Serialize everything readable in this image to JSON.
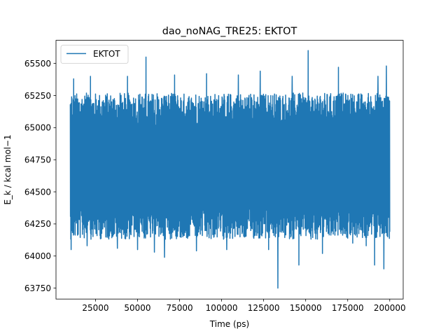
{
  "chart_data": {
    "type": "line",
    "title": "dao_noNAG_TRE25: EKTOT",
    "xlabel": "Time (ps)",
    "ylabel": "E_k / kcal mol−1",
    "xlim": [
      1500,
      208000
    ],
    "ylim": [
      63665,
      65680
    ],
    "xticks": [
      25000,
      50000,
      75000,
      100000,
      125000,
      150000,
      175000,
      200000
    ],
    "xtick_labels": [
      "25000",
      "50000",
      "75000",
      "100000",
      "125000",
      "150000",
      "175000",
      "200000"
    ],
    "yticks": [
      63750,
      64000,
      64250,
      64500,
      64750,
      65000,
      65250,
      65500
    ],
    "ytick_labels": [
      "63750",
      "64000",
      "64250",
      "64500",
      "64750",
      "65000",
      "65250",
      "65500"
    ],
    "grid": false,
    "legend_position": "upper-left",
    "series": [
      {
        "name": "EKTOT",
        "color": "#1f77b4",
        "x_start": 10000,
        "x_end": 200000,
        "band_low": 64130,
        "band_high": 65270,
        "spikes": [
          {
            "x": 10500,
            "y": 64050
          },
          {
            "x": 12000,
            "y": 65380
          },
          {
            "x": 20000,
            "y": 64080
          },
          {
            "x": 22000,
            "y": 65400
          },
          {
            "x": 38000,
            "y": 64060
          },
          {
            "x": 44000,
            "y": 65400
          },
          {
            "x": 50000,
            "y": 64050
          },
          {
            "x": 55000,
            "y": 65550
          },
          {
            "x": 60000,
            "y": 64030
          },
          {
            "x": 66000,
            "y": 63990
          },
          {
            "x": 72000,
            "y": 65410
          },
          {
            "x": 85000,
            "y": 64040
          },
          {
            "x": 91000,
            "y": 65420
          },
          {
            "x": 103000,
            "y": 64050
          },
          {
            "x": 110000,
            "y": 65410
          },
          {
            "x": 123000,
            "y": 65440
          },
          {
            "x": 128000,
            "y": 64050
          },
          {
            "x": 133500,
            "y": 63750
          },
          {
            "x": 142000,
            "y": 65400
          },
          {
            "x": 146000,
            "y": 63930
          },
          {
            "x": 151500,
            "y": 65600
          },
          {
            "x": 160000,
            "y": 64020
          },
          {
            "x": 169500,
            "y": 65470
          },
          {
            "x": 178000,
            "y": 64100
          },
          {
            "x": 186000,
            "y": 64080
          },
          {
            "x": 191000,
            "y": 63930
          },
          {
            "x": 193000,
            "y": 65400
          },
          {
            "x": 196500,
            "y": 63900
          },
          {
            "x": 198000,
            "y": 65480
          }
        ]
      }
    ]
  }
}
